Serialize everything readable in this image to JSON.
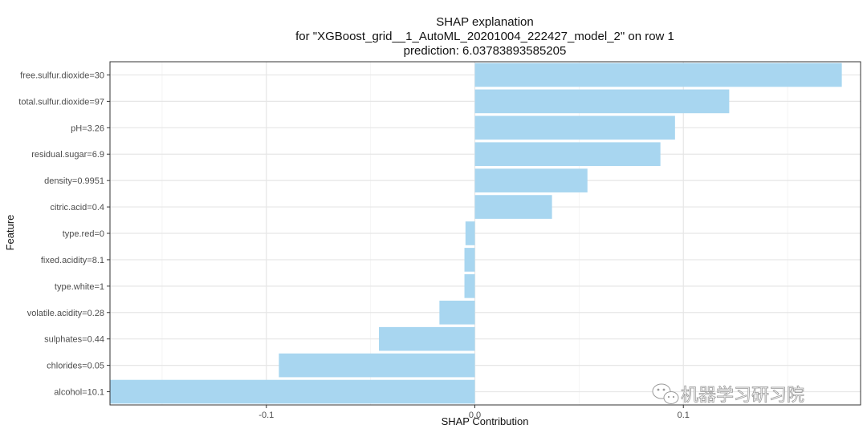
{
  "chart_data": {
    "type": "bar",
    "orientation": "horizontal",
    "title": [
      "SHAP explanation",
      "for \"XGBoost_grid__1_AutoML_20201004_222427_model_2\" on row 1",
      "prediction: 6.03783893585205"
    ],
    "xlabel": "SHAP Contribution",
    "ylabel": "Feature",
    "xlim": [
      -0.175,
      0.185
    ],
    "xticks": [
      -0.1,
      0.0,
      0.1
    ],
    "xtick_labels": [
      "-0.1",
      "0.0",
      "0.1"
    ],
    "grid": true,
    "bar_color": "#a8d6f0",
    "categories": [
      "free.sulfur.dioxide=30",
      "total.sulfur.dioxide=97",
      "pH=3.26",
      "residual.sugar=6.9",
      "density=0.9951",
      "citric.acid=0.4",
      "type.red=0",
      "fixed.acidity=8.1",
      "type.white=1",
      "volatile.acidity=0.28",
      "sulphates=0.44",
      "chlorides=0.05",
      "alcohol=10.1"
    ],
    "values": [
      0.176,
      0.122,
      0.096,
      0.089,
      0.054,
      0.037,
      -0.0045,
      -0.005,
      -0.005,
      -0.017,
      -0.046,
      -0.094,
      -0.175
    ]
  },
  "watermark": {
    "icon": "wechat-icon",
    "text": "机器学习研习院"
  }
}
